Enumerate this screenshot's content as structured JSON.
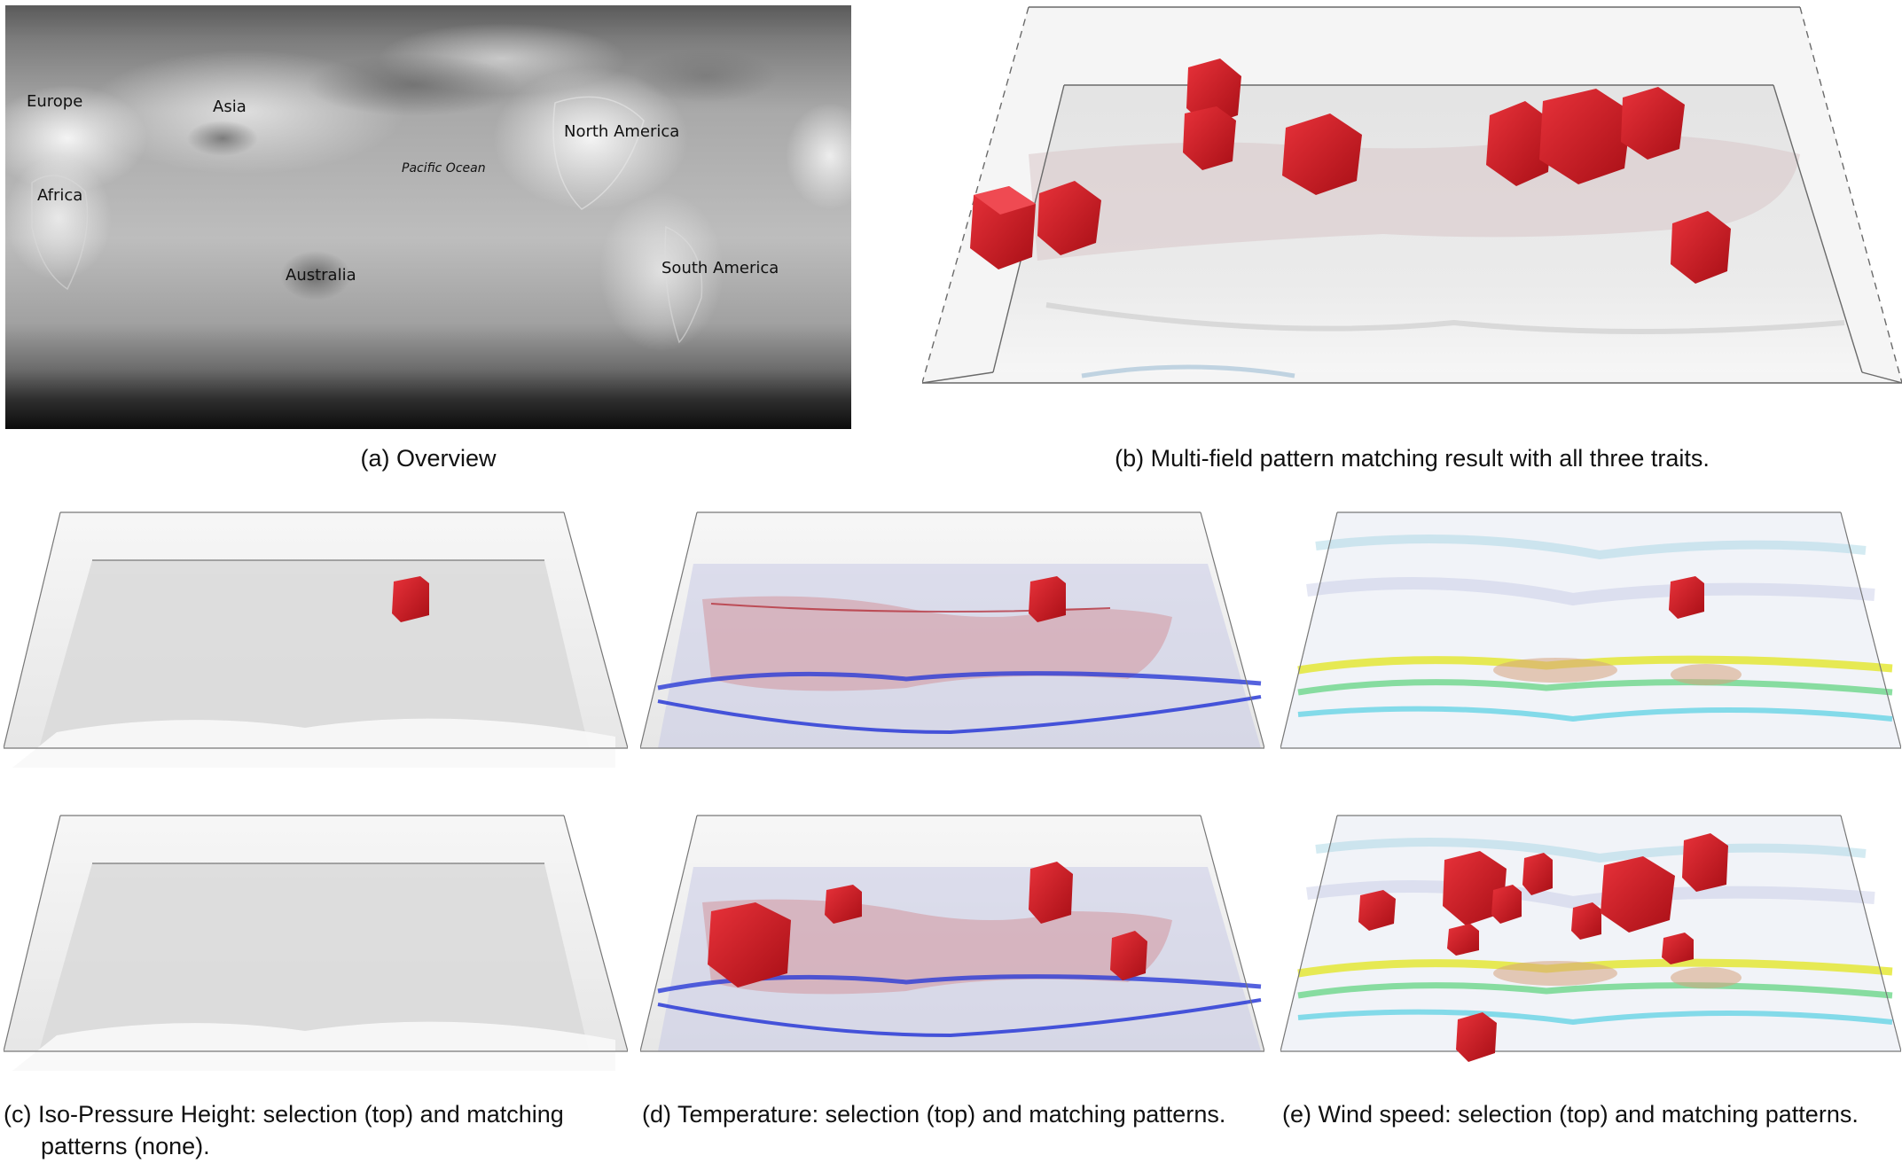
{
  "figure": {
    "overview": {
      "caption": "(a) Overview",
      "labels": {
        "europe": "Europe",
        "asia": "Asia",
        "africa": "Africa",
        "north_america": "North America",
        "pacific": "Pacific Ocean",
        "australia": "Australia",
        "south_america": "South America"
      }
    },
    "multifield": {
      "caption": "(b) Multi-field pattern matching result with all three traits."
    },
    "iso_pressure": {
      "caption_line1": "(c) Iso-Pressure Height: selection (top) and matching",
      "caption_line2": "patterns (none)."
    },
    "temperature": {
      "caption": "(d) Temperature: selection (top) and matching patterns."
    },
    "wind_speed": {
      "caption": "(e) Wind speed: selection (top) and matching patterns."
    }
  },
  "colors": {
    "highlight_red": "#d41c24",
    "temperature_blue": "#2a3bd6",
    "isosurface_red": "#c94a52",
    "wind_yellow": "#e2e61c",
    "wind_green": "#4fd070",
    "wind_cyan": "#3bc9e0"
  }
}
